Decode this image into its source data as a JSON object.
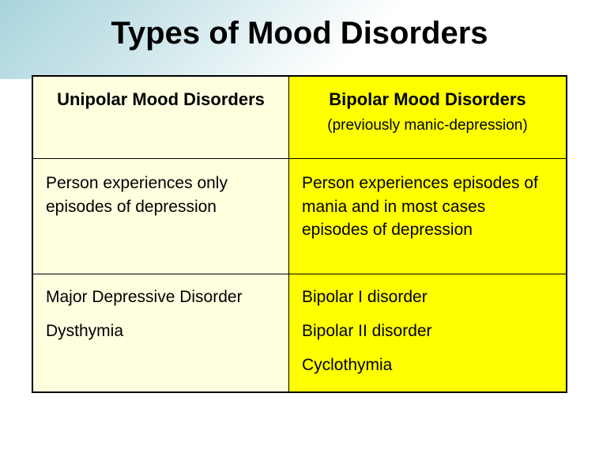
{
  "slide": {
    "title": "Types of Mood Disorders",
    "background_gradient": {
      "start": "#a8d4dc",
      "mid": "#d1e8ec",
      "end": "#ffffff"
    },
    "title_color": "#000000",
    "title_fontsize": 40
  },
  "table": {
    "border_color": "#000000",
    "columns": [
      {
        "header": "Unipolar Mood Disorders",
        "header_sub": "",
        "bg_color": "#ffffe0",
        "description": "Person experiences only episodes of depression",
        "types": [
          "Major Depressive Disorder",
          "Dysthymia"
        ]
      },
      {
        "header": "Bipolar Mood Disorders",
        "header_sub": "(previously manic-depression)",
        "bg_color": "#ffff00",
        "description": "Person experiences episodes of mania and in most cases episodes of depression",
        "types": [
          "Bipolar I disorder",
          "Bipolar II disorder",
          "Cyclothymia"
        ]
      }
    ],
    "header_fontsize": 22,
    "body_fontsize": 21
  }
}
